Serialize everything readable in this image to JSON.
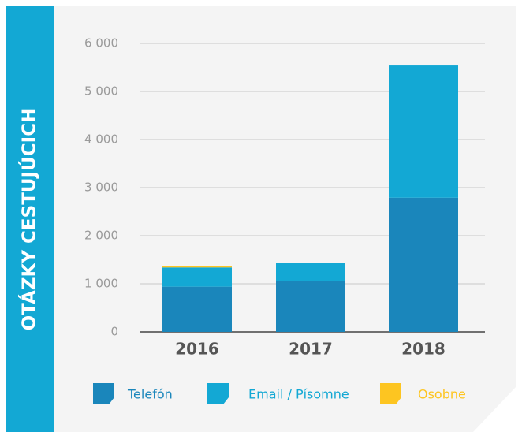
{
  "chart_data": {
    "type": "stacked_bar",
    "title": "OTÁZKY CESTUJÚCICH",
    "categories": [
      "2016",
      "2017",
      "2018"
    ],
    "series": [
      {
        "name": "Telefón",
        "color": "#1a86bb",
        "values": [
          940,
          1050,
          2790
        ]
      },
      {
        "name": "Email / Písomne",
        "color": "#13a8d4",
        "values": [
          400,
          380,
          2750
        ]
      },
      {
        "name": "Osobne",
        "color": "#fdc521",
        "values": [
          30,
          0,
          0
        ]
      }
    ],
    "ylim": [
      0,
      6000
    ],
    "yticks": [
      0,
      {
        "value": 1000,
        "label": "1 000"
      },
      {
        "value": 2000,
        "label": "2 000"
      },
      {
        "value": 3000,
        "label": "3 000"
      },
      {
        "value": 4000,
        "label": "4 000"
      },
      {
        "value": 5000,
        "label": "5 000"
      },
      {
        "value": 6000,
        "label": "6 000"
      }
    ],
    "grid": true,
    "legend": "bottom"
  }
}
